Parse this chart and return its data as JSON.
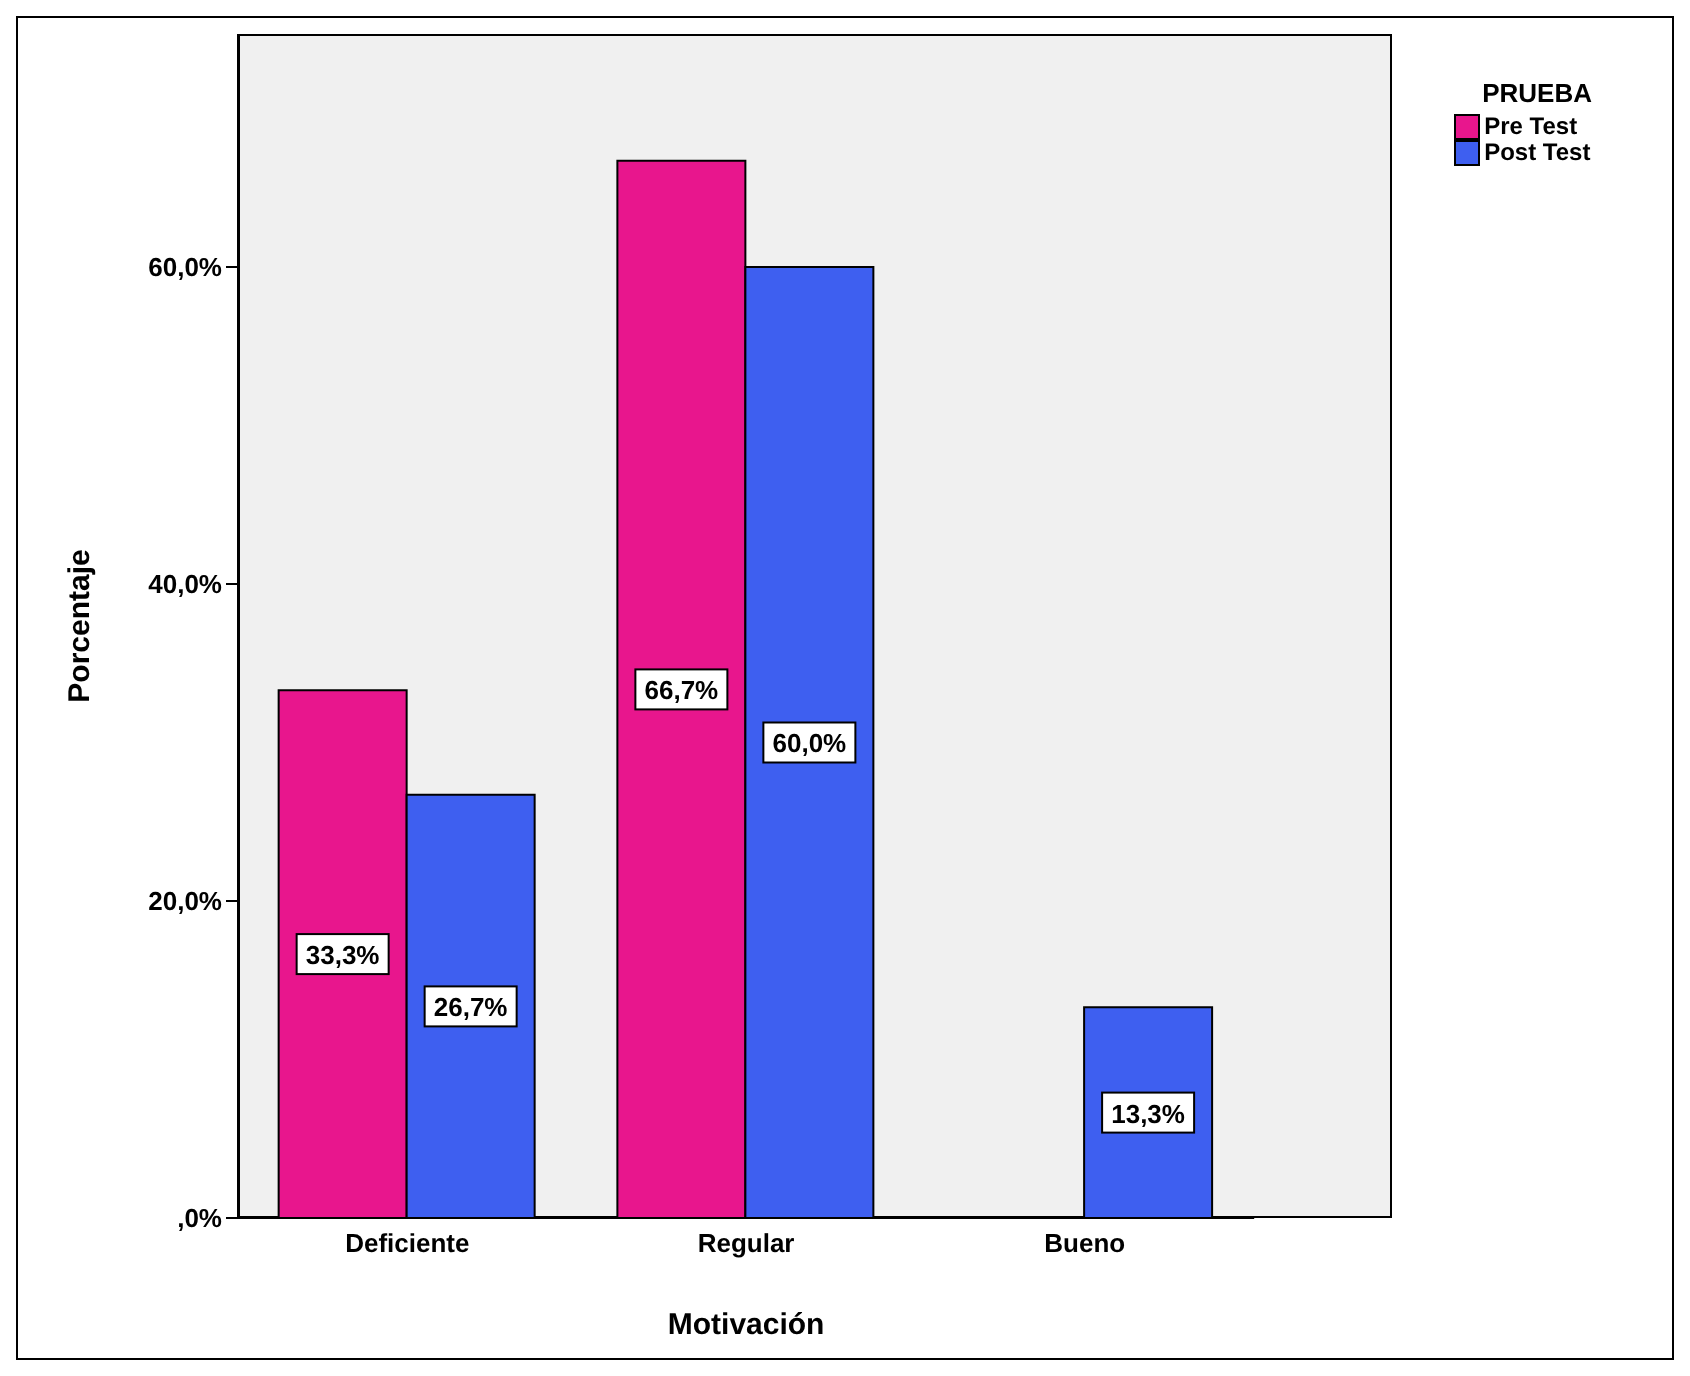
{
  "chart_data": {
    "type": "bar",
    "xlabel": "Motivación",
    "ylabel": "Porcentaje",
    "legend_title": "PRUEBA",
    "categories": [
      "Deficiente",
      "Regular",
      "Bueno"
    ],
    "series": [
      {
        "name": "Pre Test",
        "color": "#e8168d",
        "values": [
          33.3,
          66.7,
          0
        ],
        "value_labels": [
          "33,3%",
          "66,7%",
          null
        ]
      },
      {
        "name": "Post Test",
        "color": "#3e5ff0",
        "values": [
          26.7,
          60.0,
          13.3
        ],
        "value_labels": [
          "26,7%",
          "60,0%",
          "13,3%"
        ]
      }
    ],
    "ylim": [
      0,
      74.7
    ],
    "yticks": [
      {
        "value": 0,
        "label": ",0%"
      },
      {
        "value": 20,
        "label": "20,0%"
      },
      {
        "value": 40,
        "label": "40,0%"
      },
      {
        "value": 60,
        "label": "60,0%"
      }
    ],
    "grid": false,
    "legend": "top right"
  }
}
